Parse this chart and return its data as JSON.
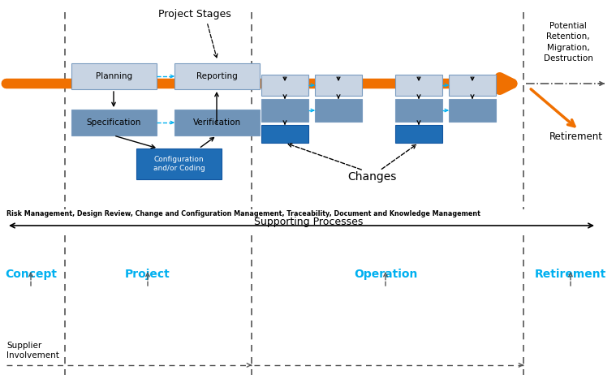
{
  "fig_width": 7.59,
  "fig_height": 4.72,
  "dpi": 100,
  "bg_color": "#ffffff",
  "colors": {
    "light_gray_box": "#c8d4e3",
    "medium_blue_box": "#7094b8",
    "dark_blue_box": "#1f6db5",
    "orange_arrow": "#f07000",
    "cyan_dashed": "#00b0f0",
    "text_dark": "#000000",
    "text_cyan": "#00b0f0",
    "dashed_line": "#555555",
    "box_border": "#7a9cc0"
  },
  "project_stages_label": "Project Stages",
  "changes_label": "Changes",
  "potential_label": "Potential\nRetention,\nMigration,\nDestruction",
  "retirement_label_top": "Retirement",
  "supporting_text": "Risk Management, Design Review, Change and Configuration Management, Traceability, Document and Knowledge Management",
  "supporting_processes_label": "Supporting Processes",
  "concept_label": "Concept",
  "project_label": "Project",
  "operation_label": "Operation",
  "retirement_label_bottom": "Retirement",
  "supplier_label": "Supplier\nInvolvement",
  "planning_label": "Planning",
  "reporting_label": "Reporting",
  "specification_label": "Specification",
  "verification_label": "Verification",
  "config_label": "Configuration\nand/or Coding"
}
